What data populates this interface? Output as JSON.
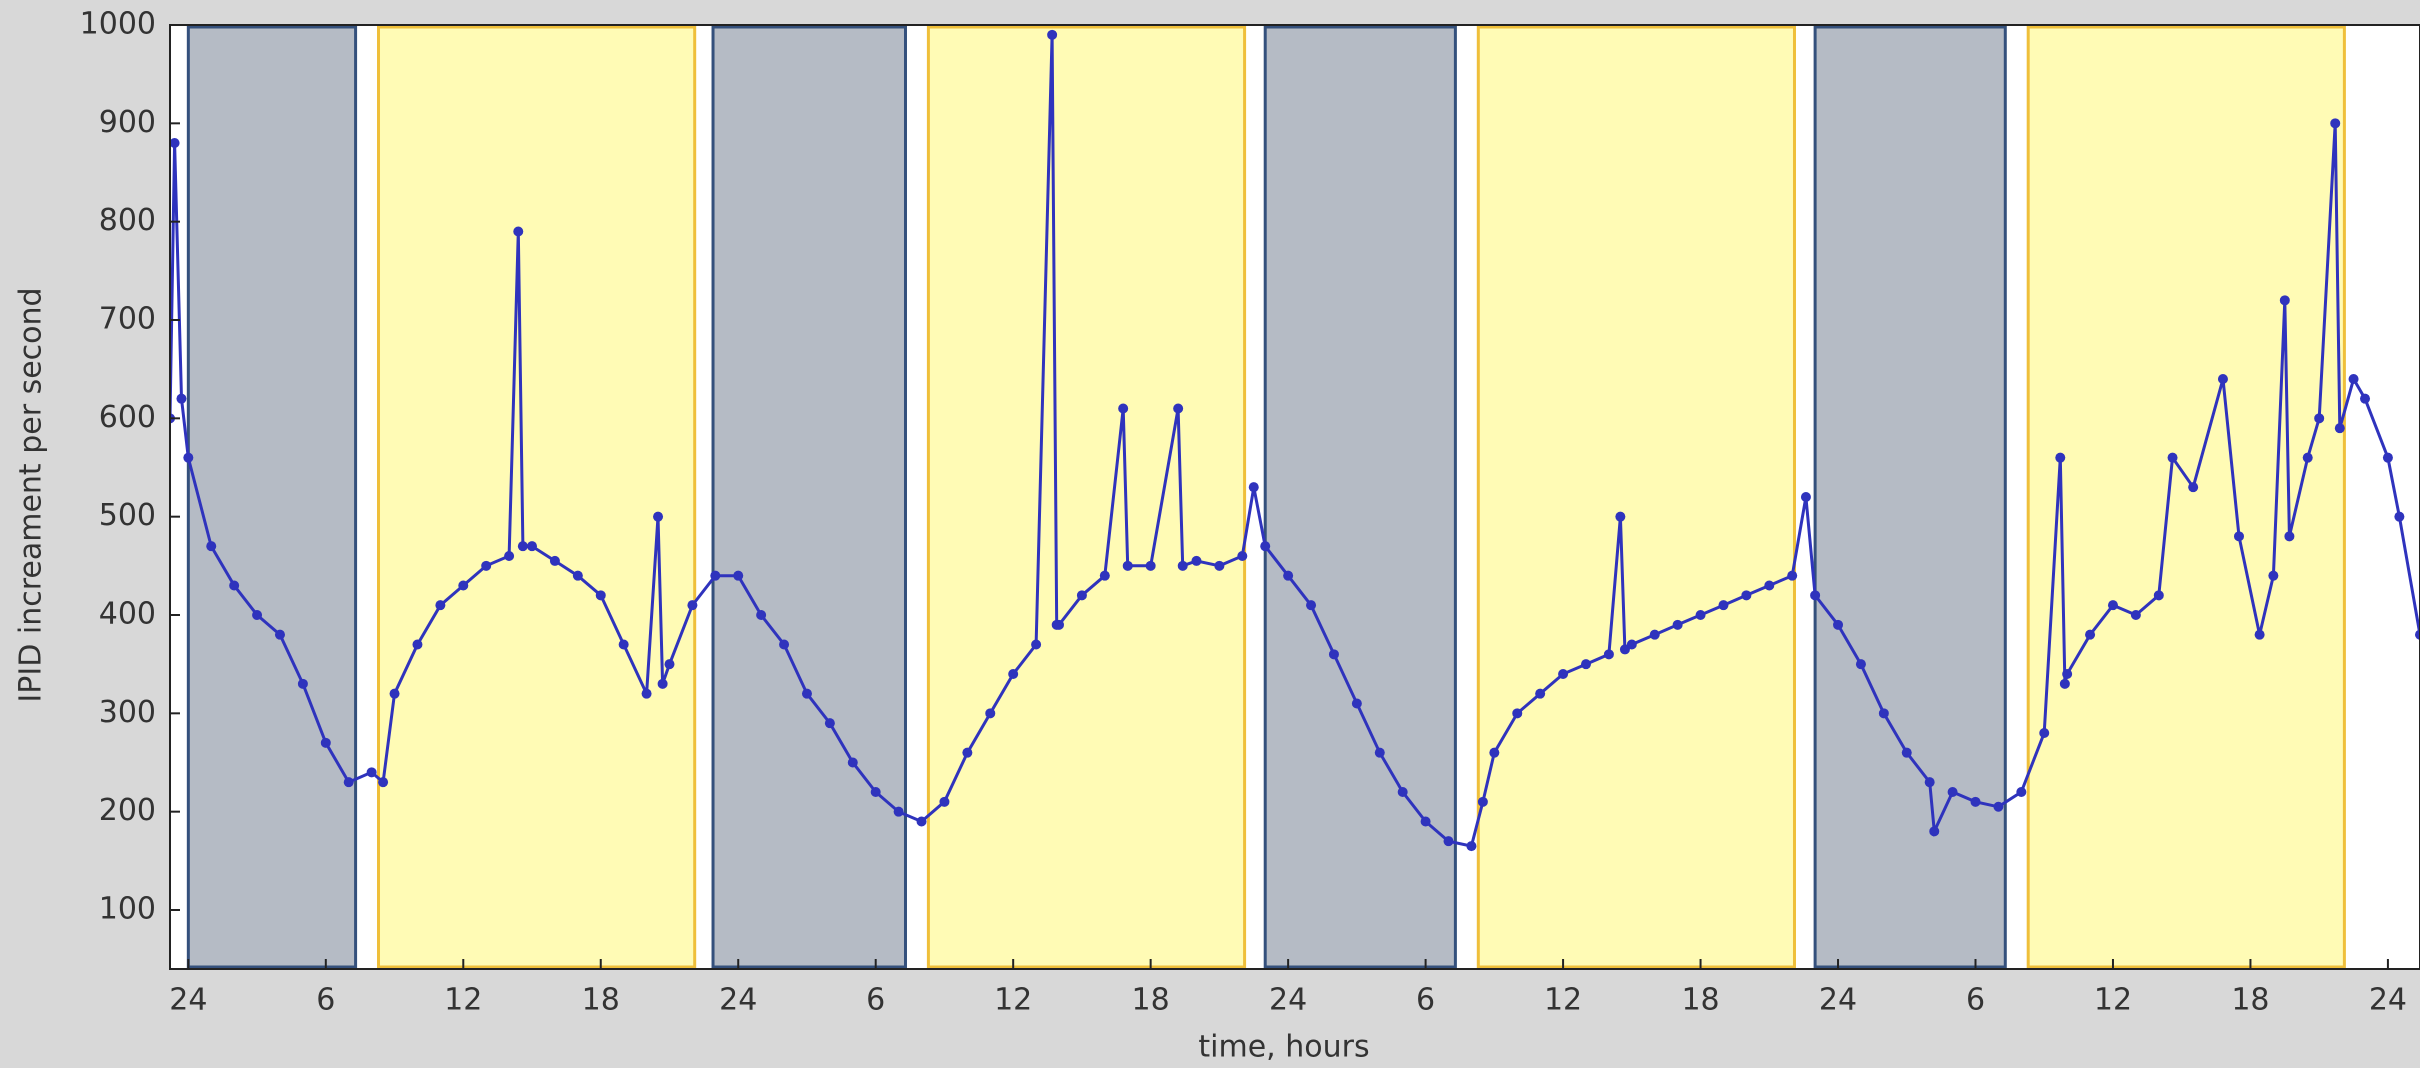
{
  "chart_data": {
    "type": "line",
    "x_label": "time, hours",
    "y_label": "IPID increament per second",
    "xlim": [
      23.2,
      121.4
    ],
    "ylim": [
      40,
      1000
    ],
    "xticks": [
      24,
      {
        "value": 30,
        "label": "6"
      },
      {
        "value": 36,
        "label": "12"
      },
      {
        "value": 42,
        "label": "18"
      },
      {
        "value": 48,
        "label": "24"
      },
      {
        "value": 54,
        "label": "6"
      },
      {
        "value": 60,
        "label": "12"
      },
      {
        "value": 66,
        "label": "18"
      },
      {
        "value": 72,
        "label": "24"
      },
      {
        "value": 78,
        "label": "6"
      },
      {
        "value": 84,
        "label": "12"
      },
      {
        "value": 90,
        "label": "18"
      },
      {
        "value": 96,
        "label": "24"
      },
      {
        "value": 102,
        "label": "6"
      },
      {
        "value": 108,
        "label": "12"
      },
      {
        "value": 114,
        "label": "18"
      },
      {
        "value": 120,
        "label": "24"
      }
    ],
    "yticks": [
      100,
      200,
      300,
      400,
      500,
      600,
      700,
      800,
      900,
      1000
    ],
    "regions": [
      {
        "start": 24.0,
        "end": 31.3,
        "color": "#b5bbc5",
        "edge": "#34507c"
      },
      {
        "start": 32.3,
        "end": 46.1,
        "color": "#fffbb5",
        "edge": "#efbf3a"
      },
      {
        "start": 46.9,
        "end": 55.3,
        "color": "#b5bbc5",
        "edge": "#34507c"
      },
      {
        "start": 56.3,
        "end": 70.1,
        "color": "#fffbb5",
        "edge": "#efbf3a"
      },
      {
        "start": 71.0,
        "end": 79.3,
        "color": "#b5bbc5",
        "edge": "#34507c"
      },
      {
        "start": 80.3,
        "end": 94.1,
        "color": "#fffbb5",
        "edge": "#efbf3a"
      },
      {
        "start": 95.0,
        "end": 103.3,
        "color": "#b5bbc5",
        "edge": "#34507c"
      },
      {
        "start": 104.3,
        "end": 118.1,
        "color": "#fffbb5",
        "edge": "#efbf3a"
      }
    ],
    "series": [
      {
        "color": "#2f33bd",
        "x": [
          23.2,
          23.4,
          23.7,
          24,
          25,
          26,
          27,
          28,
          29,
          30,
          31,
          32,
          32.5,
          33,
          34,
          35,
          36,
          37,
          38,
          38.4,
          38.6,
          39,
          40,
          41,
          42,
          43,
          44,
          44.5,
          44.7,
          45,
          46,
          47,
          48,
          49,
          50,
          51,
          52,
          53,
          54,
          55,
          56,
          57,
          58,
          59,
          60,
          61,
          61.7,
          61.9,
          62,
          63,
          64,
          64.8,
          65,
          66,
          67.2,
          67.4,
          68,
          69,
          70,
          70.5,
          71,
          72,
          73,
          74,
          75,
          76,
          77,
          78,
          79,
          80,
          80.5,
          81,
          82,
          83,
          84,
          85,
          86,
          86.5,
          86.7,
          87,
          88,
          89,
          90,
          91,
          92,
          93,
          94,
          94.6,
          95,
          96,
          97,
          98,
          99,
          100,
          100.2,
          101,
          102,
          103,
          104,
          105,
          105.7,
          105.9,
          106,
          107,
          108,
          109,
          110,
          110.6,
          111.5,
          112.8,
          113.5,
          114.4,
          115,
          115.5,
          115.7,
          116.5,
          117,
          117.7,
          117.9,
          118.5,
          119,
          120,
          120.5,
          121.4
        ],
        "values": [
          600,
          880,
          620,
          560,
          470,
          430,
          400,
          380,
          330,
          270,
          230,
          240,
          230,
          320,
          370,
          410,
          430,
          450,
          460,
          790,
          470,
          470,
          455,
          440,
          420,
          370,
          320,
          500,
          330,
          350,
          410,
          440,
          440,
          400,
          370,
          320,
          290,
          250,
          220,
          200,
          190,
          210,
          260,
          300,
          340,
          370,
          990,
          390,
          390,
          420,
          440,
          610,
          450,
          450,
          610,
          450,
          455,
          450,
          460,
          530,
          470,
          440,
          410,
          360,
          310,
          260,
          220,
          190,
          170,
          165,
          210,
          260,
          300,
          320,
          340,
          350,
          360,
          500,
          365,
          370,
          380,
          390,
          400,
          410,
          420,
          430,
          440,
          520,
          420,
          390,
          350,
          300,
          260,
          230,
          180,
          220,
          210,
          205,
          220,
          280,
          560,
          330,
          340,
          380,
          410,
          400,
          420,
          560,
          530,
          640,
          480,
          380,
          440,
          720,
          480,
          560,
          600,
          900,
          590,
          640,
          620,
          560,
          500,
          380
        ]
      }
    ]
  }
}
